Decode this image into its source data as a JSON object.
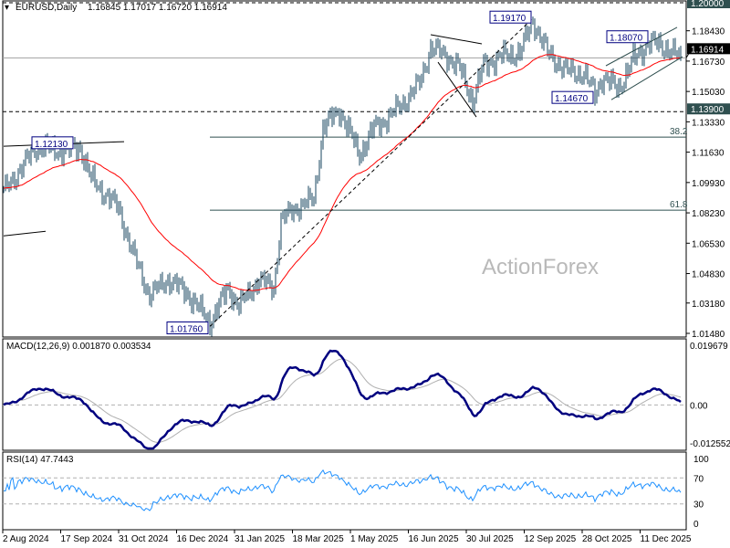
{
  "header": {
    "symbol": "EURUSD,Daily",
    "ohlc": "1.16845 1.17017 1.16720 1.16914",
    "macd_label": "MACD(12,26,9) 0.001870 0.003534",
    "rsi_label": "RSI(14) 47.7443"
  },
  "watermark": "ActionForex",
  "colors": {
    "bars": "#17455f",
    "ma": "#ff0000",
    "macd": "#00007f",
    "signal": "#b0b0b0",
    "rsi": "#1e90ff",
    "label_box": "#000080"
  },
  "chart_data": {
    "type": "ohlc",
    "title": "EURUSD,Daily",
    "bar_count": 372,
    "price_range": [
      1.0148,
      1.2
    ],
    "price_ticks": [
      "1.18430",
      "1.16730",
      "1.15030",
      "1.13330",
      "1.11630",
      "1.09930",
      "1.08230",
      "1.06530",
      "1.04830",
      "1.03180",
      "1.01480"
    ],
    "price_tick_values": [
      1.1843,
      1.1673,
      1.1503,
      1.1333,
      1.1163,
      1.0993,
      1.0823,
      1.0653,
      1.0483,
      1.0318,
      1.0148
    ],
    "highlighted_levels": [
      {
        "label": "1.20000",
        "value": 1.2,
        "style": "dashed"
      },
      {
        "label": "1.13900",
        "value": 1.139,
        "style": "dashed"
      }
    ],
    "current_price": {
      "label": "1.16914",
      "value": 1.16914
    },
    "fib_levels": [
      {
        "label": "38.2",
        "value": 1.1247,
        "from_bar": 113
      },
      {
        "label": "61.8",
        "value": 1.0838,
        "from_bar": 113
      }
    ],
    "price_path": [
      [
        0,
        1.094
      ],
      [
        18,
        1.119
      ],
      [
        30,
        1.117
      ],
      [
        42,
        1.119
      ],
      [
        48,
        1.101
      ],
      [
        63,
        1.085
      ],
      [
        70,
        1.062
      ],
      [
        80,
        1.036
      ],
      [
        90,
        1.045
      ],
      [
        100,
        1.038
      ],
      [
        113,
        1.021
      ],
      [
        123,
        1.04
      ],
      [
        129,
        1.03
      ],
      [
        140,
        1.045
      ],
      [
        148,
        1.04
      ],
      [
        152,
        1.078
      ],
      [
        160,
        1.085
      ],
      [
        170,
        1.09
      ],
      [
        175,
        1.13
      ],
      [
        184,
        1.14
      ],
      [
        195,
        1.115
      ],
      [
        203,
        1.13
      ],
      [
        210,
        1.135
      ],
      [
        220,
        1.145
      ],
      [
        228,
        1.155
      ],
      [
        234,
        1.175
      ],
      [
        243,
        1.17
      ],
      [
        250,
        1.163
      ],
      [
        257,
        1.145
      ],
      [
        263,
        1.165
      ],
      [
        273,
        1.17
      ],
      [
        283,
        1.172
      ],
      [
        290,
        1.19
      ],
      [
        298,
        1.172
      ],
      [
        308,
        1.162
      ],
      [
        318,
        1.16
      ],
      [
        324,
        1.149
      ],
      [
        328,
        1.158
      ],
      [
        337,
        1.152
      ],
      [
        345,
        1.168
      ],
      [
        354,
        1.178
      ],
      [
        363,
        1.175
      ],
      [
        371,
        1.169
      ]
    ],
    "annotations": [
      {
        "label": "1.19170",
        "bar": 290,
        "value": 1.1917
      },
      {
        "label": "1.18070",
        "bar": 354,
        "value": 1.1807
      },
      {
        "label": "1.14670",
        "bar": 324,
        "value": 1.1467
      },
      {
        "label": "1.12130",
        "bar": 18,
        "value": 1.1213
      },
      {
        "label": "1.01760",
        "bar": 113,
        "value": 1.0176
      }
    ],
    "trendlines": [
      {
        "from": [
          0,
          1.1196
        ],
        "to": [
          66,
          1.1222
        ],
        "style": "solid"
      },
      {
        "from": [
          0,
          1.0694
        ],
        "to": [
          23,
          1.072
        ],
        "style": "solid"
      },
      {
        "from": [
          113,
          1.0187
        ],
        "to": [
          290,
          1.1913
        ],
        "style": "dashed"
      },
      {
        "from": [
          234,
          1.1821
        ],
        "to": [
          262,
          1.177
        ],
        "style": "solid"
      },
      {
        "from": [
          238,
          1.1667
        ],
        "to": [
          259,
          1.136
        ],
        "style": "solid"
      },
      {
        "from": [
          330,
          1.1647
        ],
        "to": [
          369,
          1.1862
        ],
        "style": "thin"
      },
      {
        "from": [
          333,
          1.1457
        ],
        "to": [
          372,
          1.1698
        ],
        "style": "thin"
      }
    ],
    "macd": {
      "params": [
        12,
        26,
        9
      ],
      "value": 0.00187,
      "signal": 0.003534,
      "range": [
        -0.012552,
        0.019679
      ],
      "ticks": [
        "0.019679",
        "0.00",
        "-0.012552"
      ]
    },
    "rsi": {
      "period": 14,
      "value": 47.7443,
      "range": [
        0,
        100
      ],
      "ticks": [
        "100",
        "70",
        "30",
        "0"
      ],
      "levels": [
        70,
        30
      ]
    },
    "x_ticks": [
      "2 Aug 2024",
      "17 Sep 2024",
      "31 Oct 2024",
      "16 Dec 2024",
      "31 Jan 2025",
      "18 Mar 2025",
      "1 May 2025",
      "16 Jun 2025",
      "30 Jul 2025",
      "12 Sep 2025",
      "28 Oct 2025",
      "11 Dec 2025"
    ]
  }
}
